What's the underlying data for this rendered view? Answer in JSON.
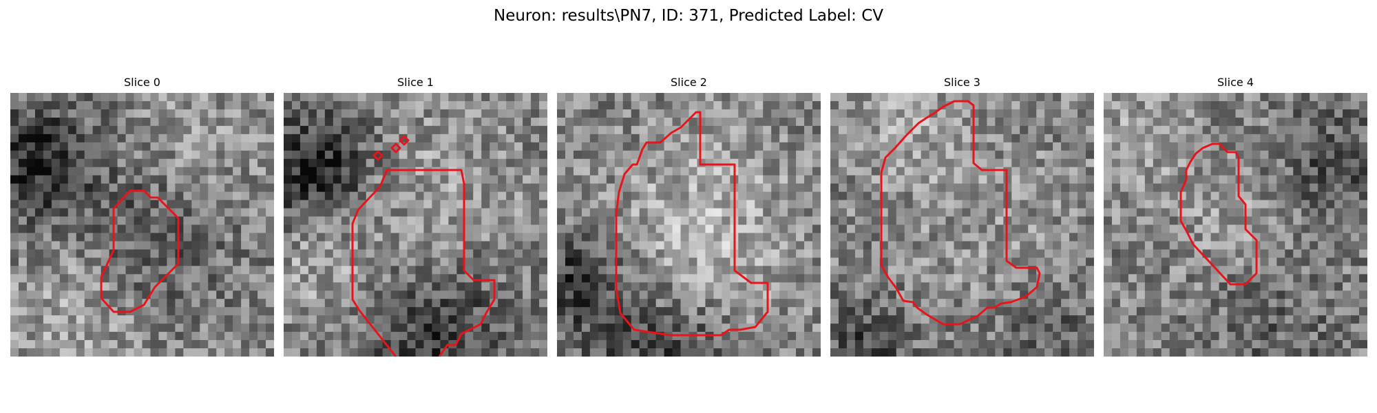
{
  "figure": {
    "title": "Neuron: results\\PN7, ID: 371, Predicted Label: CV"
  },
  "panels": [
    {
      "title": "Slice 0"
    },
    {
      "title": "Slice 1"
    },
    {
      "title": "Slice 2"
    },
    {
      "title": "Slice 3"
    },
    {
      "title": "Slice 4"
    }
  ],
  "style": {
    "contour_color": "#e8141c",
    "colormap": "gray"
  }
}
